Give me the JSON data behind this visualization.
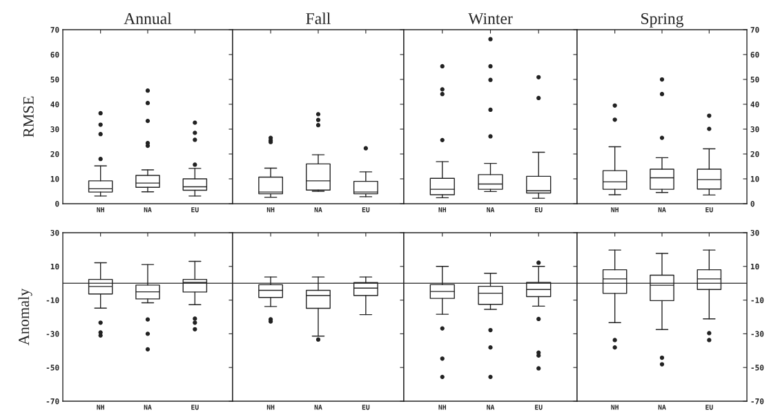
{
  "chart_data": [
    {
      "type": "box",
      "title": "Annual",
      "ylabel": "RMSE",
      "categories": [
        "NH",
        "NA",
        "EU"
      ],
      "ylim": [
        0,
        70
      ],
      "yticks": [
        0,
        10,
        20,
        30,
        40,
        50,
        60,
        70
      ],
      "grid": false,
      "boxes": [
        {
          "low": 3.1,
          "q1": 4.7,
          "median": 6.0,
          "q3": 9.2,
          "high": 15.2,
          "outliers": [
            36.4,
            31.8,
            28,
            18
          ]
        },
        {
          "low": 4.8,
          "q1": 6.6,
          "median": 8.3,
          "q3": 11.4,
          "high": 13.6,
          "outliers": [
            45.5,
            40.5,
            33.3,
            24.4,
            23.3
          ]
        },
        {
          "low": 3.1,
          "q1": 5.4,
          "median": 6.8,
          "q3": 10,
          "high": 14.2,
          "outliers": [
            15.7,
            25.7,
            28.5,
            32.6
          ]
        }
      ]
    },
    {
      "type": "box",
      "title": "Fall",
      "categories": [
        "NH",
        "NA",
        "EU"
      ],
      "ylim": [
        0,
        70
      ],
      "yticks": [
        0,
        10,
        20,
        30,
        40,
        50,
        60,
        70
      ],
      "tick_labels": "x",
      "grid": false,
      "boxes": [
        {
          "low": 2.6,
          "q1": 4.0,
          "median": 4.7,
          "q3": 10.7,
          "high": 14.3,
          "outliers": [
            26.5,
            25.5,
            24.8
          ]
        },
        {
          "low": 5.0,
          "q1": 5.5,
          "median": 9.2,
          "q3": 16,
          "high": 19.7,
          "outliers": [
            36,
            33.7,
            31.6
          ]
        },
        {
          "low": 2.8,
          "q1": 4,
          "median": 4.7,
          "q3": 9,
          "high": 12.8,
          "outliers": [
            22.3
          ]
        }
      ]
    },
    {
      "type": "box",
      "title": "Winter",
      "categories": [
        "NH",
        "NA",
        "EU"
      ],
      "ylim": [
        0,
        70
      ],
      "yticks": [
        0,
        10,
        20,
        30,
        40,
        50,
        60,
        70
      ],
      "tick_labels": "x",
      "grid": false,
      "boxes": [
        {
          "low": 2.4,
          "q1": 3.6,
          "median": 5.8,
          "q3": 10.2,
          "high": 16.9,
          "outliers": [
            25.6,
            44.1,
            46,
            55.3
          ]
        },
        {
          "low": 4.9,
          "q1": 5.8,
          "median": 7.9,
          "q3": 11.7,
          "high": 16.2,
          "outliers": [
            27.1,
            37.8,
            49.8,
            55.3,
            66.2
          ]
        },
        {
          "low": 2.2,
          "q1": 4.3,
          "median": 5.2,
          "q3": 11,
          "high": 20.7,
          "outliers": [
            42.5,
            50.9
          ]
        }
      ]
    },
    {
      "type": "box",
      "title": "Spring",
      "categories": [
        "NH",
        "NA",
        "EU"
      ],
      "ylim": [
        0,
        70
      ],
      "yticks": [
        0,
        10,
        20,
        30,
        40,
        50,
        60,
        70
      ],
      "grid": false,
      "boxes": [
        {
          "low": 3.6,
          "q1": 5.8,
          "median": 8.8,
          "q3": 13.3,
          "high": 22.9,
          "outliers": [
            33.8,
            39.5
          ]
        },
        {
          "low": 4.5,
          "q1": 5.8,
          "median": 10.4,
          "q3": 13.9,
          "high": 18.5,
          "outliers": [
            26.5,
            44.1,
            50
          ]
        },
        {
          "low": 3.5,
          "q1": 5.9,
          "median": 9.7,
          "q3": 13.9,
          "high": 22.1,
          "outliers": [
            30.1,
            35.4
          ]
        }
      ]
    },
    {
      "type": "box",
      "ylabel": "Anomaly",
      "categories": [
        "NH",
        "NA",
        "EU"
      ],
      "ylim": [
        -70,
        30
      ],
      "yticks": [
        -70,
        -50,
        -30,
        -10,
        10,
        30
      ],
      "grid": false,
      "ref_lines": [
        {
          "axis": "y",
          "value": 0
        }
      ],
      "boxes": [
        {
          "low": -14.8,
          "q1": -6.4,
          "median": -1.9,
          "q3": 2.3,
          "high": 12.2,
          "outliers": [
            -23.4,
            -29.2,
            -31
          ]
        },
        {
          "low": -11.6,
          "q1": -9.3,
          "median": -5.1,
          "q3": -1.1,
          "high": 11.1,
          "outliers": [
            -21.5,
            -30,
            -39.2
          ]
        },
        {
          "low": -12.7,
          "q1": -5.2,
          "median": 0.5,
          "q3": 2.3,
          "high": 13,
          "outliers": [
            -21,
            -23.4,
            -27.3
          ]
        }
      ]
    },
    {
      "type": "box",
      "categories": [
        "NH",
        "NA",
        "EU"
      ],
      "ylim": [
        -70,
        30
      ],
      "yticks": [
        -70,
        -50,
        -30,
        -10,
        10,
        30
      ],
      "tick_labels": "x",
      "grid": false,
      "ref_lines": [
        {
          "axis": "y",
          "value": 0
        }
      ],
      "boxes": [
        {
          "low": -13.8,
          "q1": -8.4,
          "median": -4.2,
          "q3": -0.9,
          "high": 3.7,
          "outliers": [
            -21.4,
            -22.7
          ]
        },
        {
          "low": -31.4,
          "q1": -14.9,
          "median": -7.3,
          "q3": -4.2,
          "high": 3.7,
          "outliers": [
            -33.4
          ]
        },
        {
          "low": -18.6,
          "q1": -7.3,
          "median": -2.9,
          "q3": 0.4,
          "high": 3.7
        }
      ]
    },
    {
      "type": "box",
      "categories": [
        "NH",
        "NA",
        "EU"
      ],
      "ylim": [
        -70,
        30
      ],
      "yticks": [
        -70,
        -50,
        -30,
        -10,
        10,
        30
      ],
      "tick_labels": "x",
      "grid": false,
      "ref_lines": [
        {
          "axis": "y",
          "value": 0
        }
      ],
      "boxes": [
        {
          "low": -18.4,
          "q1": -9,
          "median": -4.9,
          "q3": -0.8,
          "high": 10,
          "outliers": [
            -26.8,
            -44.7,
            -55.6
          ]
        },
        {
          "low": -15.5,
          "q1": -12.5,
          "median": -5.9,
          "q3": -1.8,
          "high": 5.9,
          "outliers": [
            -27.8,
            -38.1,
            -55.6
          ]
        },
        {
          "low": -13.6,
          "q1": -7.9,
          "median": -3.7,
          "q3": 0.5,
          "high": 10,
          "outliers": [
            12.2,
            -21.2,
            -41.2,
            -42.9,
            -50.5
          ]
        }
      ]
    },
    {
      "type": "box",
      "categories": [
        "NH",
        "NA",
        "EU"
      ],
      "ylim": [
        -70,
        30
      ],
      "yticks": [
        -70,
        -50,
        -30,
        -10,
        10,
        30
      ],
      "grid": false,
      "ref_lines": [
        {
          "axis": "y",
          "value": 0
        }
      ],
      "boxes": [
        {
          "low": -23.4,
          "q1": -6,
          "median": 2.6,
          "q3": 8,
          "high": 19.7,
          "outliers": [
            -33.7,
            -38.1
          ]
        },
        {
          "low": -27.5,
          "q1": -10.3,
          "median": -1.2,
          "q3": 4.8,
          "high": 17.7,
          "outliers": [
            -44.2,
            -48.1
          ]
        },
        {
          "low": -21.1,
          "q1": -3.7,
          "median": 2.6,
          "q3": 8,
          "high": 19.7,
          "outliers": [
            -29.6,
            -33.7
          ]
        }
      ]
    }
  ]
}
